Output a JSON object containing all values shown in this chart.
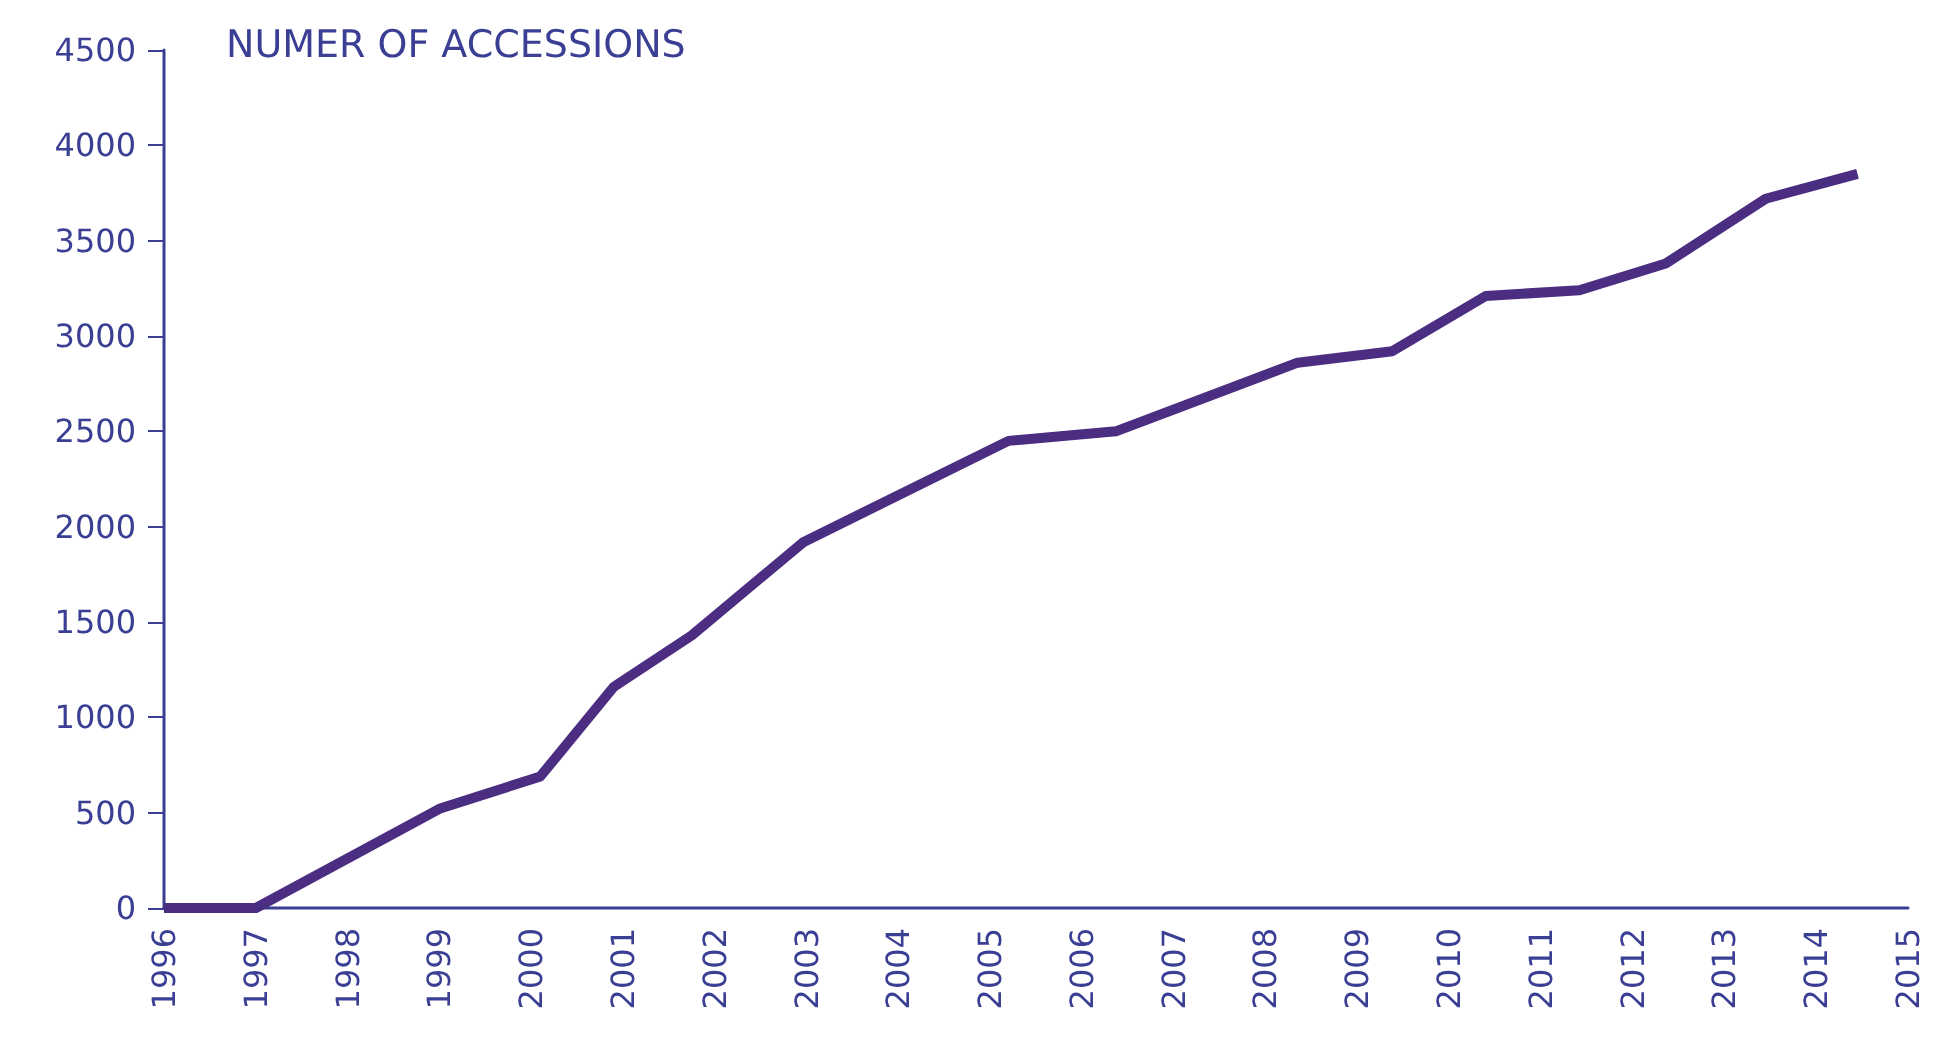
{
  "chart_data": {
    "type": "line",
    "title": "NUMER OF ACCESSIONS",
    "x": [
      1996,
      1997,
      1999,
      2000.1,
      2000.9,
      2001.75,
      2002.97,
      2005.2,
      2006.37,
      2008.35,
      2009.38,
      2010.4,
      2011.42,
      2012.36,
      2013.45,
      2014.45
    ],
    "series": [
      {
        "color": "#4b2d82",
        "values": [
          0,
          0,
          520,
          690,
          1160,
          1430,
          1920,
          2450,
          2500,
          2860,
          2920,
          3210,
          3240,
          3380,
          3720,
          3850
        ]
      }
    ],
    "xlim": [
      1996,
      2015
    ],
    "xticks": [
      1996,
      1997,
      1998,
      1999,
      2000,
      2001,
      2002,
      2003,
      2004,
      2005,
      2006,
      2007,
      2008,
      2009,
      2010,
      2011,
      2012,
      2013,
      2014,
      2015
    ],
    "ylim": [
      0,
      4500
    ],
    "yticks": [
      0,
      500,
      1000,
      1500,
      2000,
      2500,
      3000,
      3500,
      4000,
      4500
    ],
    "grid": false,
    "marker": "none",
    "line_style": "solid"
  }
}
